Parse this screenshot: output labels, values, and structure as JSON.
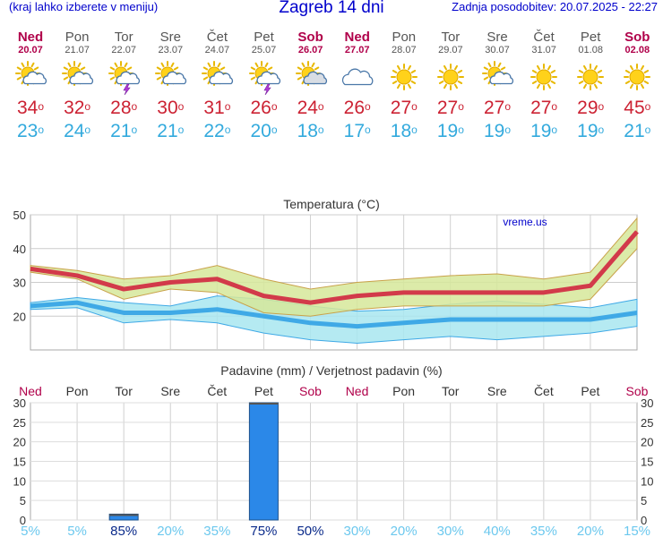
{
  "header": {
    "note": "(kraj lahko izberete v meniju)",
    "title": "Zagreb 14 dni",
    "updated": "Zadnja posodobitev: 20.07.2025 - 22:27"
  },
  "days": [
    {
      "day": "Ned",
      "date": "20.07",
      "weekend": true,
      "icon": "sun-cloud-icon",
      "max": "34",
      "min": "23"
    },
    {
      "day": "Pon",
      "date": "21.07",
      "weekend": false,
      "icon": "sun-cloud-icon",
      "max": "32",
      "min": "24"
    },
    {
      "day": "Tor",
      "date": "22.07",
      "weekend": false,
      "icon": "sun-cloud-storm-icon",
      "max": "28",
      "min": "21"
    },
    {
      "day": "Sre",
      "date": "23.07",
      "weekend": false,
      "icon": "sun-cloud-icon",
      "max": "30",
      "min": "21"
    },
    {
      "day": "Čet",
      "date": "24.07",
      "weekend": false,
      "icon": "sun-cloud-icon",
      "max": "31",
      "min": "22"
    },
    {
      "day": "Pet",
      "date": "25.07",
      "weekend": false,
      "icon": "sun-cloud-storm-icon",
      "max": "26",
      "min": "20"
    },
    {
      "day": "Sob",
      "date": "26.07",
      "weekend": true,
      "icon": "sun-cloud-grey-icon",
      "max": "24",
      "min": "18"
    },
    {
      "day": "Ned",
      "date": "27.07",
      "weekend": true,
      "icon": "cloud-icon",
      "max": "26",
      "min": "17"
    },
    {
      "day": "Pon",
      "date": "28.07",
      "weekend": false,
      "icon": "sun-icon",
      "max": "27",
      "min": "18"
    },
    {
      "day": "Tor",
      "date": "29.07",
      "weekend": false,
      "icon": "sun-icon",
      "max": "27",
      "min": "19"
    },
    {
      "day": "Sre",
      "date": "30.07",
      "weekend": false,
      "icon": "sun-cloud-icon",
      "max": "27",
      "min": "19"
    },
    {
      "day": "Čet",
      "date": "31.07",
      "weekend": false,
      "icon": "sun-icon",
      "max": "27",
      "min": "19"
    },
    {
      "day": "Pet",
      "date": "01.08",
      "weekend": false,
      "icon": "sun-icon",
      "max": "29",
      "min": "19"
    },
    {
      "day": "Sob",
      "date": "02.08",
      "weekend": true,
      "icon": "sun-icon",
      "max": "45",
      "min": "21"
    }
  ],
  "degree_symbol": "o",
  "colors": {
    "weekend": "#b0004a",
    "max_line": "#d23a4a",
    "max_band": "#d6e89a",
    "min_line": "#3fa9e6",
    "min_band": "#a8e6f0",
    "precip_bar": "#2b88e8",
    "probability_high": "#0a2a8a",
    "probability_low": "#6cc8ee"
  },
  "chart_data": [
    {
      "type": "line",
      "title": "Temperatura (°C)",
      "watermark": "vreme.us",
      "ylim": [
        10,
        50
      ],
      "yticks": [
        20,
        30,
        40,
        50
      ],
      "grid": true,
      "x": [
        "20.07",
        "21.07",
        "22.07",
        "23.07",
        "24.07",
        "25.07",
        "26.07",
        "27.07",
        "28.07",
        "29.07",
        "30.07",
        "31.07",
        "01.08",
        "02.08"
      ],
      "series": [
        {
          "role": "max",
          "values": [
            34,
            32,
            28,
            30,
            31,
            26,
            24,
            26,
            27,
            27,
            27,
            27,
            29,
            45
          ]
        },
        {
          "role": "max_upper",
          "values": [
            35,
            33.5,
            31,
            32,
            35,
            31,
            28,
            30,
            31,
            32,
            32.5,
            31,
            33,
            49
          ]
        },
        {
          "role": "max_lower",
          "values": [
            33,
            31,
            25,
            28,
            27,
            21,
            20,
            22,
            23,
            23,
            23,
            23,
            25,
            40
          ]
        },
        {
          "role": "min",
          "values": [
            23,
            24,
            21,
            21,
            22,
            20,
            18,
            17,
            18,
            19,
            19,
            19,
            19,
            21
          ]
        },
        {
          "role": "min_upper",
          "values": [
            24,
            25.5,
            24,
            23,
            26,
            25,
            23,
            21.5,
            22,
            23.5,
            24.5,
            23.5,
            22.5,
            25
          ]
        },
        {
          "role": "min_lower",
          "values": [
            22,
            22.5,
            18,
            19,
            18,
            15,
            13,
            12,
            13,
            14,
            13,
            14,
            15,
            17
          ]
        }
      ]
    },
    {
      "type": "bar",
      "title": "Padavine (mm) / Verjetnost padavin (%)",
      "categories": [
        "Ned",
        "Pon",
        "Tor",
        "Sre",
        "Čet",
        "Pet",
        "Sob",
        "Ned",
        "Pon",
        "Tor",
        "Sre",
        "Čet",
        "Pet",
        "Sob"
      ],
      "weekend": [
        true,
        false,
        false,
        false,
        false,
        false,
        true,
        true,
        false,
        false,
        false,
        false,
        false,
        true
      ],
      "ylim": [
        0,
        30
      ],
      "yticks": [
        0,
        5,
        10,
        15,
        20,
        25,
        30
      ],
      "values": [
        0,
        0,
        1.5,
        0,
        0,
        31,
        0,
        0,
        0,
        0,
        0,
        0,
        0,
        0
      ],
      "probability": [
        5,
        5,
        85,
        20,
        35,
        75,
        50,
        30,
        20,
        30,
        40,
        35,
        20,
        15
      ],
      "probability_labels": [
        "5%",
        "5%",
        "85%",
        "20%",
        "35%",
        "75%",
        "50%",
        "30%",
        "20%",
        "30%",
        "40%",
        "35%",
        "20%",
        "15%"
      ]
    }
  ]
}
